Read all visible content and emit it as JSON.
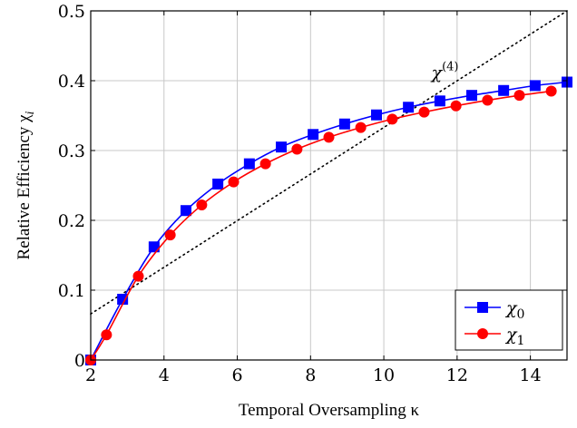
{
  "chart_data": {
    "type": "line",
    "xlabel": "Temporal Oversampling κ",
    "ylabel": "Relative Efficiency χ",
    "ylabel_sub": "i",
    "xlim": [
      2,
      15
    ],
    "ylim": [
      0,
      0.5
    ],
    "x_ticks": [
      2,
      4,
      6,
      8,
      10,
      12,
      14
    ],
    "y_ticks": [
      0,
      0.1,
      0.2,
      0.3,
      0.4,
      0.5
    ],
    "y_tick_labels": [
      "0",
      "0.1",
      "0.2",
      "0.3",
      "0.4",
      "0.5"
    ],
    "grid": true,
    "legend_position": "bottom-right",
    "series": [
      {
        "name": "χ",
        "name_sub": "0",
        "color": "#0000ff",
        "marker": "square",
        "x": [
          2.0,
          2.87,
          3.73,
          4.6,
          5.47,
          6.33,
          7.2,
          8.07,
          8.93,
          9.8,
          10.67,
          11.53,
          12.4,
          13.27,
          14.13,
          15.0
        ],
        "y": [
          0.0,
          0.087,
          0.162,
          0.214,
          0.252,
          0.281,
          0.305,
          0.323,
          0.338,
          0.351,
          0.362,
          0.371,
          0.379,
          0.386,
          0.393,
          0.398
        ]
      },
      {
        "name": "χ",
        "name_sub": "1",
        "color": "#ff0000",
        "marker": "circle",
        "x": [
          2.0,
          2.43,
          3.3,
          4.17,
          5.03,
          5.9,
          6.77,
          7.63,
          8.5,
          9.37,
          10.23,
          11.1,
          11.97,
          12.83,
          13.7,
          14.57
        ],
        "y": [
          0.0,
          0.036,
          0.12,
          0.179,
          0.222,
          0.255,
          0.281,
          0.302,
          0.319,
          0.333,
          0.345,
          0.355,
          0.364,
          0.372,
          0.379,
          0.385
        ]
      }
    ],
    "reference_line": {
      "label": "χ",
      "label_sup": "(4)",
      "style": "dotted",
      "color": "#000000",
      "x": [
        2,
        15
      ],
      "y": [
        0.066,
        0.5
      ]
    }
  }
}
